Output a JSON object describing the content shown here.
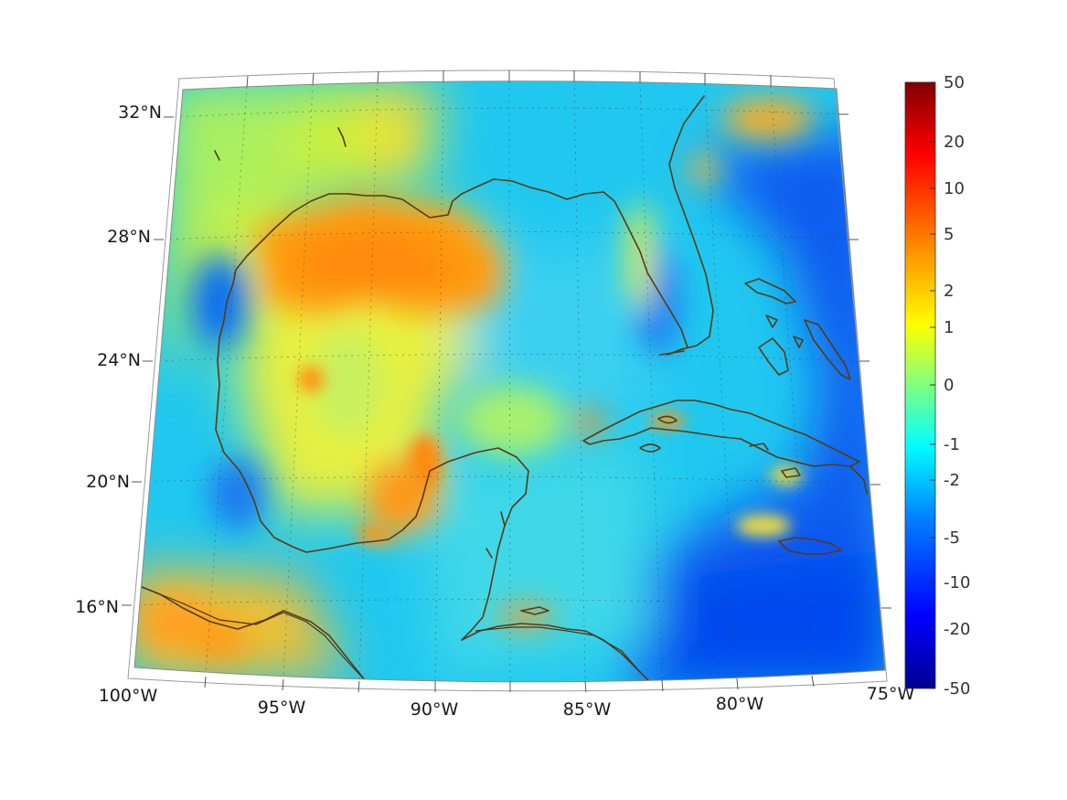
{
  "map": {
    "projection": "conic",
    "region": "Gulf of Mexico and western Caribbean",
    "lon_labels": [
      "100°W",
      "95°W",
      "90°W",
      "85°W",
      "80°W",
      "75°W"
    ],
    "lat_labels": [
      "32°N",
      "28°N",
      "24°N",
      "20°N",
      "16°N"
    ],
    "coastline_color": "#5a3a12"
  },
  "colorbar": {
    "colormap": "jet",
    "ticks": [
      "50",
      "20",
      "10",
      "5",
      "2",
      "1",
      "0",
      "-1",
      "-2",
      "-5",
      "-10",
      "-20",
      "-50"
    ],
    "stops": [
      "#00008f",
      "#0000ff",
      "#0080ff",
      "#00ffff",
      "#80ff80",
      "#ffff00",
      "#ff8000",
      "#ff0000",
      "#800000"
    ]
  }
}
